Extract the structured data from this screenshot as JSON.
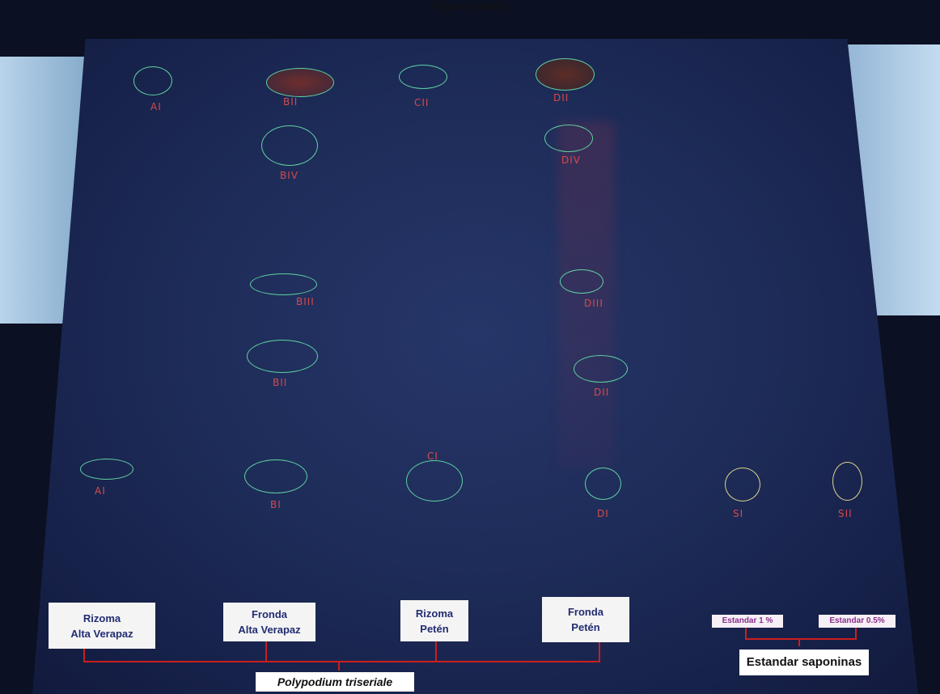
{
  "figure_caption": "Figura (cont.)",
  "lane_labels": [
    {
      "line1": "Rizoma",
      "line2": "Alta Verapaz"
    },
    {
      "line1": "Fronda",
      "line2": "Alta Verapaz"
    },
    {
      "line1": "Rizoma",
      "line2": "Petén"
    },
    {
      "line1": "Fronda",
      "line2": "Petén"
    }
  ],
  "standard_labels": [
    "Estandar 1 %",
    "Estandar 0.5%"
  ],
  "group_caption_species": "Polypodium triseriale",
  "group_caption_standards": "Estandar saponinas",
  "spot_marks": {
    "a_top": "AI",
    "b_top": "BII",
    "c_top": "CII",
    "d_top": "DII",
    "b_iv": "BIV",
    "d_iv": "DIV",
    "b_iii": "BIII",
    "d_iii": "DIII",
    "b_ii": "BII",
    "d_ii": "DII",
    "a_i": "AI",
    "b_i": "BI",
    "c_i": "CI",
    "d_i": "DI",
    "s_i": "SI",
    "s_ii": "SII"
  },
  "colors": {
    "spot_outline": "#5fd2a0",
    "standard_outline": "#d8d48a",
    "mark_red": "#d64a4a",
    "bracket_red": "#cc1e1e",
    "label_text": "#222c72",
    "standard_text": "#8a2f8c"
  }
}
